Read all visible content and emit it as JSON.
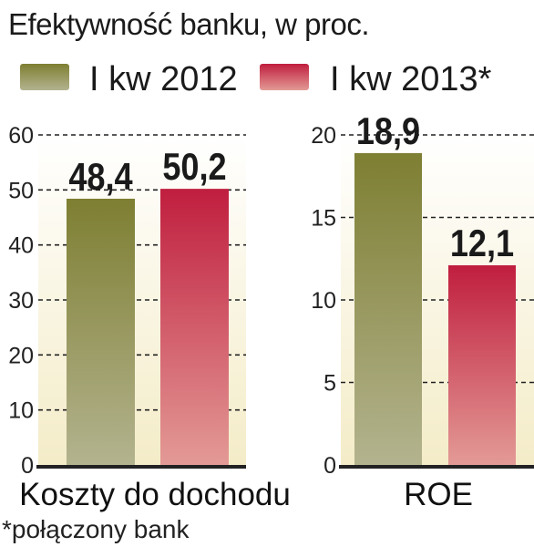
{
  "chart_data": {
    "type": "bar",
    "title": "Efektywność banku, w proc.",
    "footnote": "*połączony bank",
    "series": [
      {
        "name": "I kw 2012",
        "color_top": "#7e7f32",
        "color_bottom": "#b3b38f"
      },
      {
        "name": "I kw 2013*",
        "color_top": "#c01e3e",
        "color_bottom": "#e39a96"
      }
    ],
    "panels": [
      {
        "category": "Koszty do dochodu",
        "ylim": [
          0,
          60
        ],
        "yticks": [
          "0",
          "10",
          "20",
          "30",
          "40",
          "50",
          "60"
        ],
        "values": [
          48.4,
          50.2
        ],
        "value_labels": [
          "48,4",
          "50,2"
        ]
      },
      {
        "category": "ROE",
        "ylim": [
          0,
          20
        ],
        "yticks": [
          "0",
          "5",
          "10",
          "15",
          "20"
        ],
        "values": [
          18.9,
          12.1
        ],
        "value_labels": [
          "18,9",
          "12,1"
        ]
      }
    ]
  }
}
